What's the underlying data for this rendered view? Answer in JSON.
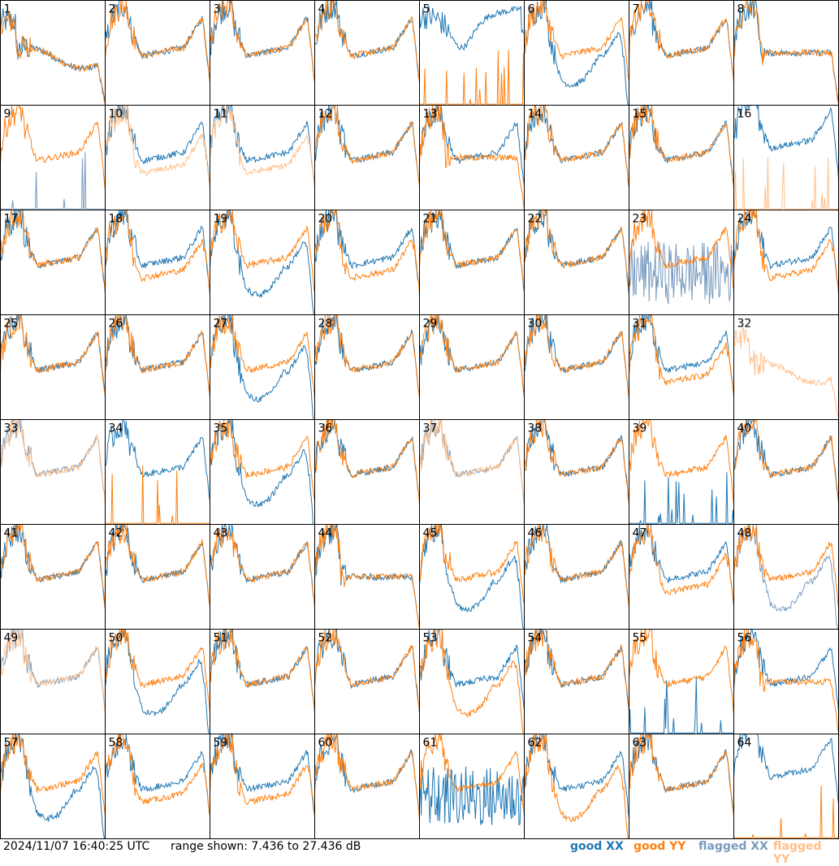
{
  "colors": {
    "good_xx": "#1f77b4",
    "good_yy": "#ff7f0e",
    "flagged_xx": "#7a9cbf",
    "flagged_yy": "#ffbf8a",
    "border": "#000000"
  },
  "footer": {
    "timestamp": "2024/11/07 16:40:25 UTC",
    "range_text": "range shown: 7.436 to 27.436 dB"
  },
  "legend": [
    {
      "label": "good XX",
      "color": "#1f77b4"
    },
    {
      "label": "good YY",
      "color": "#ff7f0e"
    },
    {
      "label": "flagged XX",
      "color": "#7a9cbf"
    },
    {
      "label": "flagged YY",
      "color": "#ffbf8a"
    }
  ],
  "chart_data": {
    "type": "line",
    "grid_layout": "8x8",
    "y_range_db": [
      7.436,
      27.436
    ],
    "panels": [
      {
        "id": "1",
        "xx": "good",
        "yy": "good",
        "xx_shape": "noisy-decay",
        "yy_shape": "noisy-decay"
      },
      {
        "id": "2",
        "xx": "good",
        "yy": "good",
        "xx_shape": "standard",
        "yy_shape": "standard"
      },
      {
        "id": "3",
        "xx": "good",
        "yy": "good",
        "xx_shape": "standard",
        "yy_shape": "standard"
      },
      {
        "id": "4",
        "xx": "good",
        "yy": "good",
        "xx_shape": "standard",
        "yy_shape": "standard"
      },
      {
        "id": "5",
        "xx": "good",
        "yy": "good",
        "xx_shape": "high-dip",
        "yy_shape": "spike-low"
      },
      {
        "id": "6",
        "xx": "good",
        "yy": "good",
        "xx_shape": "low-dip",
        "yy_shape": "standard"
      },
      {
        "id": "7",
        "xx": "good",
        "yy": "good",
        "xx_shape": "standard",
        "yy_shape": "standard"
      },
      {
        "id": "8",
        "xx": "good",
        "yy": "good",
        "xx_shape": "noisy-flat",
        "yy_shape": "noisy-flat"
      },
      {
        "id": "9",
        "xx": "flagged",
        "yy": "good",
        "xx_shape": "spike-low",
        "yy_shape": "standard"
      },
      {
        "id": "10",
        "xx": "good",
        "yy": "flagged",
        "xx_shape": "standard",
        "yy_shape": "lower"
      },
      {
        "id": "11",
        "xx": "good",
        "yy": "flagged",
        "xx_shape": "standard",
        "yy_shape": "lower"
      },
      {
        "id": "12",
        "xx": "good",
        "yy": "good",
        "xx_shape": "standard",
        "yy_shape": "standard"
      },
      {
        "id": "13",
        "xx": "good",
        "yy": "good",
        "xx_shape": "standard",
        "yy_shape": "noisy-flat"
      },
      {
        "id": "14",
        "xx": "good",
        "yy": "good",
        "xx_shape": "standard",
        "yy_shape": "standard"
      },
      {
        "id": "15",
        "xx": "good",
        "yy": "good",
        "xx_shape": "standard",
        "yy_shape": "standard"
      },
      {
        "id": "16",
        "xx": "good",
        "yy": "flagged",
        "xx_shape": "high",
        "yy_shape": "spike-low"
      },
      {
        "id": "17",
        "xx": "good",
        "yy": "good",
        "xx_shape": "standard",
        "yy_shape": "standard"
      },
      {
        "id": "18",
        "xx": "good",
        "yy": "good",
        "xx_shape": "standard",
        "yy_shape": "lower"
      },
      {
        "id": "19",
        "xx": "good",
        "yy": "good",
        "xx_shape": "low-dip",
        "yy_shape": "standard"
      },
      {
        "id": "20",
        "xx": "good",
        "yy": "good",
        "xx_shape": "standard",
        "yy_shape": "lower"
      },
      {
        "id": "21",
        "xx": "good",
        "yy": "good",
        "xx_shape": "standard",
        "yy_shape": "standard"
      },
      {
        "id": "22",
        "xx": "good",
        "yy": "good",
        "xx_shape": "standard",
        "yy_shape": "standard"
      },
      {
        "id": "23",
        "xx": "flagged",
        "yy": "good",
        "xx_shape": "chaotic",
        "yy_shape": "standard"
      },
      {
        "id": "24",
        "xx": "good",
        "yy": "good",
        "xx_shape": "standard",
        "yy_shape": "lower"
      },
      {
        "id": "25",
        "xx": "good",
        "yy": "good",
        "xx_shape": "standard",
        "yy_shape": "standard"
      },
      {
        "id": "26",
        "xx": "good",
        "yy": "good",
        "xx_shape": "standard",
        "yy_shape": "standard"
      },
      {
        "id": "27",
        "xx": "good",
        "yy": "good",
        "xx_shape": "low-dip",
        "yy_shape": "standard"
      },
      {
        "id": "28",
        "xx": "good",
        "yy": "good",
        "xx_shape": "standard",
        "yy_shape": "standard"
      },
      {
        "id": "29",
        "xx": "good",
        "yy": "good",
        "xx_shape": "standard",
        "yy_shape": "standard"
      },
      {
        "id": "30",
        "xx": "good",
        "yy": "good",
        "xx_shape": "standard",
        "yy_shape": "standard"
      },
      {
        "id": "31",
        "xx": "good",
        "yy": "good",
        "xx_shape": "standard",
        "yy_shape": "lower"
      },
      {
        "id": "32",
        "xx": "none",
        "yy": "flagged",
        "xx_shape": "none",
        "yy_shape": "noisy-decay"
      },
      {
        "id": "33",
        "xx": "flagged",
        "yy": "flagged",
        "xx_shape": "standard",
        "yy_shape": "standard"
      },
      {
        "id": "34",
        "xx": "good",
        "yy": "good",
        "xx_shape": "standard",
        "yy_shape": "spike-low"
      },
      {
        "id": "35",
        "xx": "good",
        "yy": "good",
        "xx_shape": "low-dip",
        "yy_shape": "standard"
      },
      {
        "id": "36",
        "xx": "good",
        "yy": "good",
        "xx_shape": "standard",
        "yy_shape": "standard"
      },
      {
        "id": "37",
        "xx": "flagged",
        "yy": "flagged",
        "xx_shape": "standard",
        "yy_shape": "standard"
      },
      {
        "id": "38",
        "xx": "good",
        "yy": "good",
        "xx_shape": "standard",
        "yy_shape": "standard"
      },
      {
        "id": "39",
        "xx": "good",
        "yy": "good",
        "xx_shape": "spike-low",
        "yy_shape": "standard"
      },
      {
        "id": "40",
        "xx": "good",
        "yy": "good",
        "xx_shape": "standard",
        "yy_shape": "standard"
      },
      {
        "id": "41",
        "xx": "good",
        "yy": "good",
        "xx_shape": "standard",
        "yy_shape": "standard"
      },
      {
        "id": "42",
        "xx": "good",
        "yy": "good",
        "xx_shape": "standard",
        "yy_shape": "standard"
      },
      {
        "id": "43",
        "xx": "good",
        "yy": "good",
        "xx_shape": "standard",
        "yy_shape": "standard"
      },
      {
        "id": "44",
        "xx": "good",
        "yy": "good",
        "xx_shape": "noisy-flat",
        "yy_shape": "noisy-flat"
      },
      {
        "id": "45",
        "xx": "good",
        "yy": "good",
        "xx_shape": "low-dip",
        "yy_shape": "standard"
      },
      {
        "id": "46",
        "xx": "good",
        "yy": "good",
        "xx_shape": "standard",
        "yy_shape": "standard"
      },
      {
        "id": "47",
        "xx": "good",
        "yy": "good",
        "xx_shape": "standard",
        "yy_shape": "lower"
      },
      {
        "id": "48",
        "xx": "flagged",
        "yy": "good",
        "xx_shape": "low-dip",
        "yy_shape": "standard"
      },
      {
        "id": "49",
        "xx": "flagged",
        "yy": "flagged",
        "xx_shape": "standard",
        "yy_shape": "standard"
      },
      {
        "id": "50",
        "xx": "good",
        "yy": "good",
        "xx_shape": "low-dip",
        "yy_shape": "standard"
      },
      {
        "id": "51",
        "xx": "good",
        "yy": "good",
        "xx_shape": "standard",
        "yy_shape": "standard"
      },
      {
        "id": "52",
        "xx": "good",
        "yy": "good",
        "xx_shape": "standard",
        "yy_shape": "standard"
      },
      {
        "id": "53",
        "xx": "good",
        "yy": "good",
        "xx_shape": "standard",
        "yy_shape": "low-dip"
      },
      {
        "id": "54",
        "xx": "good",
        "yy": "good",
        "xx_shape": "standard",
        "yy_shape": "standard"
      },
      {
        "id": "55",
        "xx": "good",
        "yy": "good",
        "xx_shape": "spike-low",
        "yy_shape": "standard"
      },
      {
        "id": "56",
        "xx": "good",
        "yy": "good",
        "xx_shape": "standard",
        "yy_shape": "noisy-flat"
      },
      {
        "id": "57",
        "xx": "good",
        "yy": "good",
        "xx_shape": "low-dip",
        "yy_shape": "standard"
      },
      {
        "id": "58",
        "xx": "good",
        "yy": "good",
        "xx_shape": "standard",
        "yy_shape": "lower"
      },
      {
        "id": "59",
        "xx": "good",
        "yy": "good",
        "xx_shape": "standard",
        "yy_shape": "lower"
      },
      {
        "id": "60",
        "xx": "good",
        "yy": "good",
        "xx_shape": "standard",
        "yy_shape": "standard"
      },
      {
        "id": "61",
        "xx": "good",
        "yy": "good",
        "xx_shape": "chaotic",
        "yy_shape": "standard"
      },
      {
        "id": "62",
        "xx": "good",
        "yy": "good",
        "xx_shape": "standard",
        "yy_shape": "low-dip"
      },
      {
        "id": "63",
        "xx": "good",
        "yy": "good",
        "xx_shape": "standard",
        "yy_shape": "standard"
      },
      {
        "id": "64",
        "xx": "good",
        "yy": "good",
        "xx_shape": "high",
        "yy_shape": "spike-low"
      }
    ]
  }
}
